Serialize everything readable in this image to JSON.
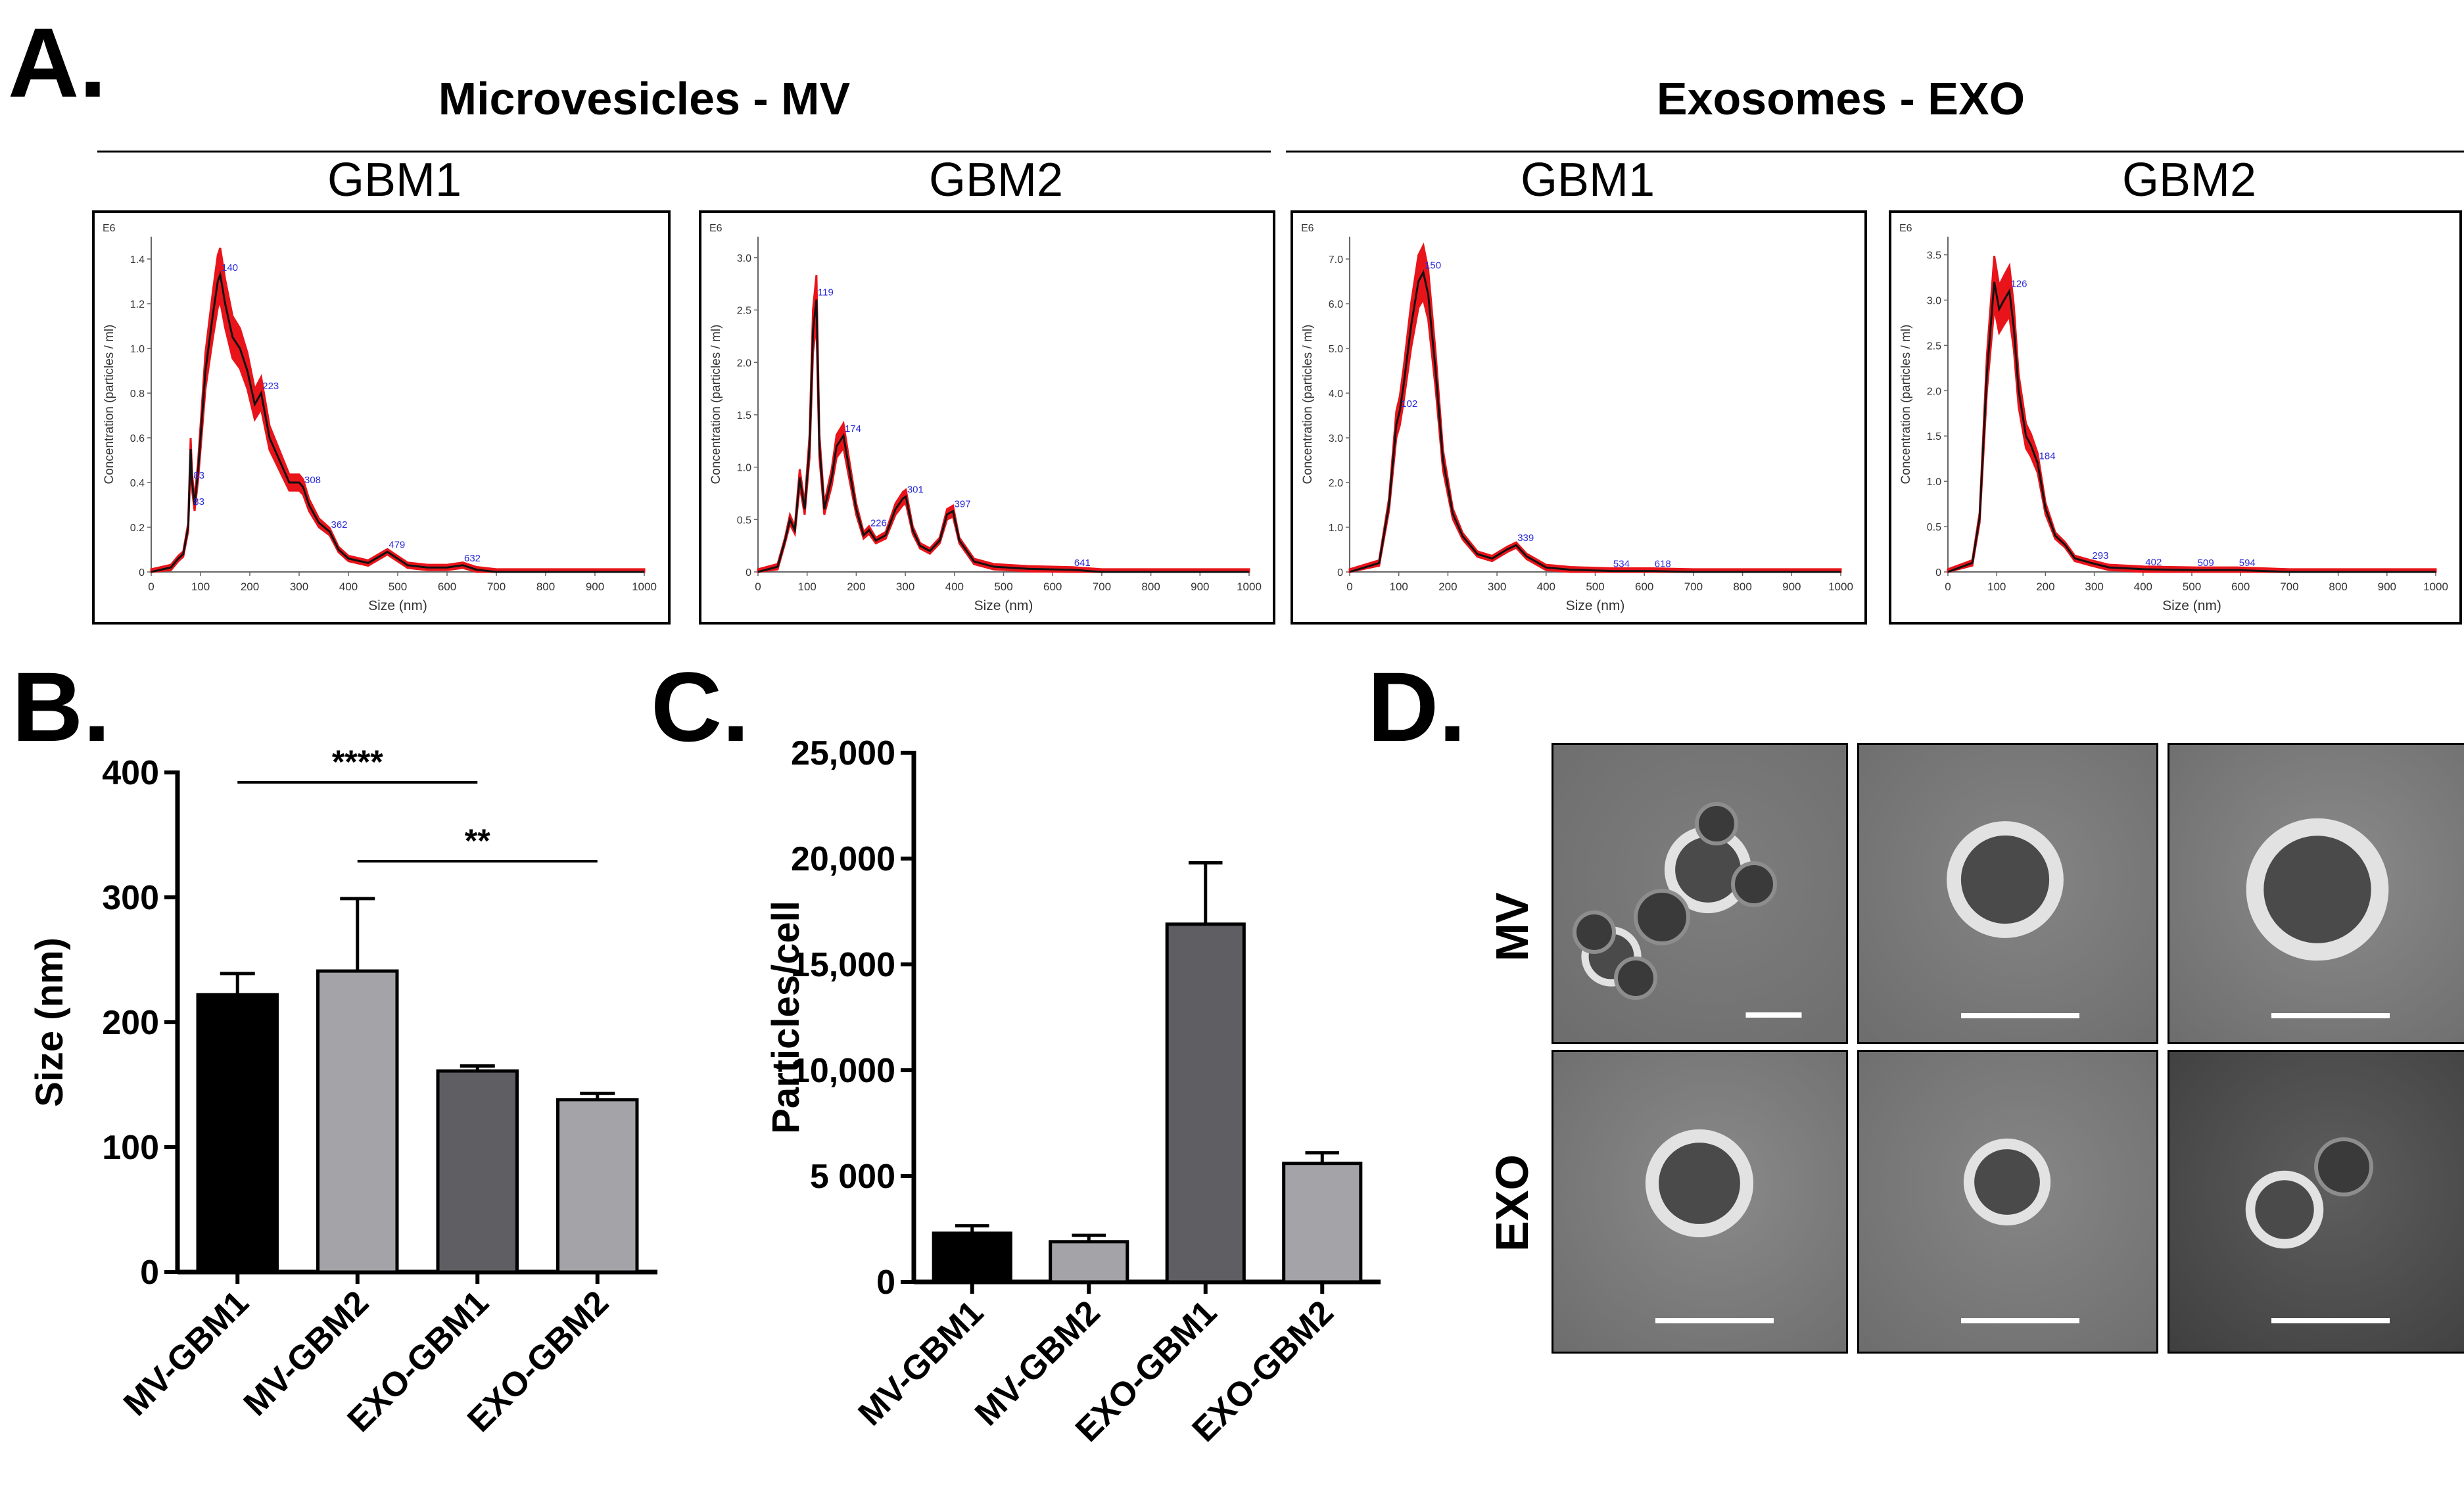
{
  "figure": {
    "panel_letters": {
      "a": "A.",
      "b": "B.",
      "c": "C.",
      "d": "D."
    },
    "panel_a": {
      "groups": [
        {
          "title": "Microvesicles - MV"
        },
        {
          "title": "Exosomes - EXO"
        }
      ],
      "plot_common": {
        "exponent": "E6",
        "ylabel": "Concentration (particles / ml)",
        "xlabel": "Size (nm)",
        "x_ticks": [
          "0",
          "100",
          "200",
          "300",
          "400",
          "500",
          "600",
          "700",
          "800",
          "900",
          "1000"
        ]
      },
      "plots": [
        {
          "title": "GBM1",
          "y_ticks": [
            "0",
            "0.2",
            "0.4",
            "0.6",
            "0.8",
            "1.0",
            "1.2",
            "1.4"
          ],
          "ymax": 1.5,
          "peak_labels": [
            "140",
            "223",
            "308",
            "362",
            "479",
            "632",
            "83",
            "83"
          ]
        },
        {
          "title": "GBM2",
          "y_ticks": [
            "0",
            "0.5",
            "1.0",
            "1.5",
            "2.0",
            "2.5",
            "3.0"
          ],
          "ymax": 3.2,
          "peak_labels": [
            "119",
            "174",
            "226",
            "301",
            "397",
            "641"
          ]
        },
        {
          "title": "GBM1",
          "y_ticks": [
            "0",
            "1.0",
            "2.0",
            "3.0",
            "4.0",
            "5.0",
            "6.0",
            "7.0"
          ],
          "ymax": 7.5,
          "peak_labels": [
            "150",
            "102",
            "339",
            "534",
            "618"
          ]
        },
        {
          "title": "GBM2",
          "y_ticks": [
            "0",
            "0.5",
            "1.0",
            "1.5",
            "2.0",
            "2.5",
            "3.0",
            "3.5"
          ],
          "ymax": 3.7,
          "peak_labels": [
            "126",
            "184",
            "293",
            "402",
            "509",
            "594"
          ]
        }
      ]
    },
    "panel_d": {
      "row_labels": [
        "MV",
        "EXO"
      ]
    }
  },
  "chart_data": [
    {
      "type": "line",
      "title": "Microvesicles - MV / GBM1",
      "xlabel": "Size (nm)",
      "ylabel": "Concentration (particles / ml)",
      "xlim": [
        0,
        1000
      ],
      "ylim": [
        0,
        1.5
      ],
      "x": [
        0,
        40,
        55,
        65,
        75,
        80,
        83,
        88,
        95,
        110,
        125,
        135,
        140,
        150,
        165,
        180,
        195,
        210,
        223,
        240,
        260,
        280,
        300,
        308,
        320,
        340,
        362,
        380,
        400,
        440,
        479,
        520,
        560,
        600,
        632,
        660,
        700,
        1000
      ],
      "y": [
        0,
        0.02,
        0.06,
        0.08,
        0.2,
        0.55,
        0.4,
        0.3,
        0.45,
        0.9,
        1.15,
        1.3,
        1.33,
        1.2,
        1.05,
        1.0,
        0.9,
        0.75,
        0.8,
        0.6,
        0.5,
        0.4,
        0.4,
        0.38,
        0.3,
        0.22,
        0.18,
        0.1,
        0.06,
        0.04,
        0.09,
        0.03,
        0.02,
        0.02,
        0.03,
        0.01,
        0,
        0
      ]
    },
    {
      "type": "line",
      "title": "Microvesicles - MV / GBM2",
      "xlabel": "Size (nm)",
      "ylabel": "Concentration (particles / ml)",
      "xlim": [
        0,
        1000
      ],
      "ylim": [
        0,
        3.2
      ],
      "x": [
        0,
        40,
        55,
        65,
        75,
        85,
        95,
        105,
        112,
        119,
        125,
        135,
        150,
        160,
        174,
        185,
        200,
        215,
        226,
        240,
        260,
        280,
        295,
        301,
        315,
        330,
        350,
        370,
        385,
        397,
        410,
        440,
        480,
        550,
        641,
        700,
        1000
      ],
      "y": [
        0,
        0.05,
        0.3,
        0.5,
        0.4,
        0.9,
        0.6,
        1.2,
        2.3,
        2.6,
        1.2,
        0.6,
        0.9,
        1.2,
        1.3,
        1.0,
        0.6,
        0.35,
        0.4,
        0.3,
        0.35,
        0.6,
        0.7,
        0.72,
        0.4,
        0.25,
        0.2,
        0.3,
        0.55,
        0.58,
        0.3,
        0.1,
        0.05,
        0.03,
        0.02,
        0,
        0
      ]
    },
    {
      "type": "line",
      "title": "Exosomes - EXO / GBM1",
      "xlabel": "Size (nm)",
      "ylabel": "Concentration (particles / ml)",
      "xlim": [
        0,
        1000
      ],
      "ylim": [
        0,
        7.5
      ],
      "x": [
        0,
        60,
        80,
        95,
        102,
        110,
        125,
        140,
        150,
        160,
        175,
        190,
        210,
        230,
        260,
        290,
        320,
        339,
        360,
        400,
        450,
        534,
        618,
        700,
        1000
      ],
      "y": [
        0,
        0.2,
        1.5,
        3.3,
        3.6,
        4.2,
        5.5,
        6.5,
        6.7,
        6.2,
        4.5,
        2.5,
        1.3,
        0.8,
        0.4,
        0.3,
        0.5,
        0.6,
        0.35,
        0.1,
        0.05,
        0.02,
        0.02,
        0,
        0
      ]
    },
    {
      "type": "line",
      "title": "Exosomes - EXO / GBM2",
      "xlabel": "Size (nm)",
      "ylabel": "Concentration (particles / ml)",
      "xlim": [
        0,
        1000
      ],
      "ylim": [
        0,
        3.7
      ],
      "x": [
        0,
        50,
        65,
        80,
        95,
        105,
        115,
        126,
        135,
        145,
        160,
        170,
        184,
        200,
        220,
        240,
        260,
        293,
        330,
        402,
        509,
        594,
        700,
        1000
      ],
      "y": [
        0,
        0.1,
        0.6,
        2.2,
        3.2,
        2.9,
        3.0,
        3.1,
        2.7,
        2.0,
        1.5,
        1.4,
        1.2,
        0.7,
        0.4,
        0.3,
        0.15,
        0.1,
        0.05,
        0.03,
        0.02,
        0.02,
        0,
        0
      ]
    },
    {
      "type": "bar",
      "panel": "B",
      "categories": [
        "MV-GBM1",
        "MV-GBM2",
        "EXO-GBM1",
        "EXO-GBM2"
      ],
      "values": [
        222,
        241,
        161,
        138
      ],
      "errors": [
        17,
        58,
        4,
        5
      ],
      "colors": [
        "#000000",
        "#a3a3a8",
        "#5f5f63",
        "#a3a3a8"
      ],
      "ylabel": "Size (nm)",
      "ylim": [
        0,
        400
      ],
      "y_ticks": [
        "0",
        "100",
        "200",
        "300",
        "400"
      ],
      "significance": [
        {
          "from": "MV-GBM1",
          "to": "EXO-GBM1",
          "label": "****"
        },
        {
          "from": "MV-GBM2",
          "to": "EXO-GBM2",
          "label": "**"
        }
      ]
    },
    {
      "type": "bar",
      "panel": "C",
      "categories": [
        "MV-GBM1",
        "MV-GBM2",
        "EXO-GBM1",
        "EXO-GBM2"
      ],
      "values": [
        2300,
        1900,
        16900,
        5600
      ],
      "errors": [
        350,
        300,
        2900,
        500
      ],
      "colors": [
        "#000000",
        "#a3a3a8",
        "#5f5f63",
        "#a3a3a8"
      ],
      "ylabel": "Particles/cell",
      "ylim": [
        0,
        25000
      ],
      "y_ticks": [
        "0",
        "5 000",
        "10,000",
        "15,000",
        "20,000",
        "25,000"
      ]
    }
  ]
}
